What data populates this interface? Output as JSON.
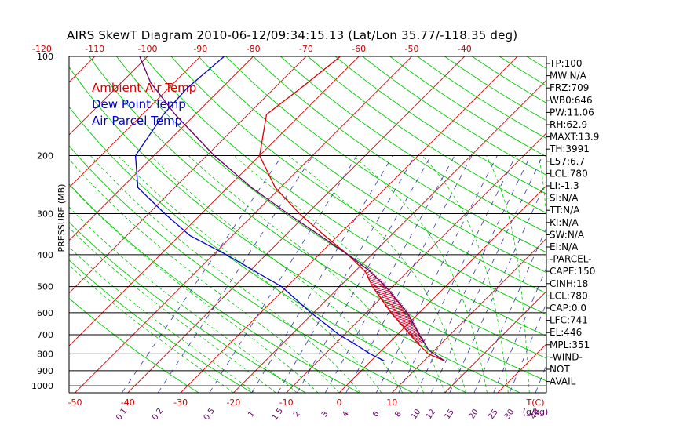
{
  "title": "AIRS SkewT Diagram 2010-06-12/09:34:15.13 (Lat/Lon 35.77/-118.35 deg)",
  "colors": {
    "temp": "#dd0000",
    "dewpoint": "#0000cc",
    "parcel": "#660066",
    "isotherm": "#dd0000",
    "dry_adiabat": "#00cc00",
    "moist_adiabat": "#00cc00",
    "mixing_ratio": "#3333aa",
    "bottom_labels": "#cc0000",
    "mixing_labels": "#660066"
  },
  "legend": [
    {
      "label": "Ambient Air Temp",
      "color": "#dd0000"
    },
    {
      "label": "Dew Point Temp",
      "color": "#0000cc"
    },
    {
      "label": "Air Parcel Temp",
      "color": "#0000cc"
    }
  ],
  "ylabel": "PRESSURE (MB)",
  "indices": [
    "TP:100",
    "MW:N/A",
    "FRZ:709",
    "WB0:646",
    "PW:11.06",
    "RH:62.9",
    "MAXT:13.9",
    "TH:3991",
    "L57:6.7",
    "LCL:780",
    "LI:-1.3",
    "SI:N/A",
    "TT:N/A",
    "KI:N/A",
    "SW:N/A",
    "EI:N/A",
    "-PARCEL-",
    "CAPE:150",
    "CINH:18",
    "LCL:780",
    "CAP:0.0",
    "LFC:741",
    "EL:446",
    "MPL:351",
    "-WIND-",
    "NOT",
    "AVAIL"
  ],
  "chart_data": {
    "type": "line",
    "title": "AIRS SkewT Diagram 2010-06-12/09:34:15.13 (Lat/Lon 35.77/-118.35 deg)",
    "ylabel": "PRESSURE (MB)",
    "xlabel": "T(C)",
    "ylim": [
      1050,
      100
    ],
    "y_scale": "log",
    "pressure_ticks": [
      100,
      200,
      300,
      400,
      500,
      600,
      700,
      800,
      900,
      1000
    ],
    "top_temp_ticks": [
      -120,
      -110,
      -100,
      -90,
      -80,
      -70,
      -60,
      -50,
      -40
    ],
    "bottom_temp_ticks": [
      -50,
      -40,
      -30,
      -20,
      -10,
      0,
      10
    ],
    "mixing_ratio_ticks": [
      "0.1",
      "0.2",
      "0.5",
      "1",
      "1.5",
      "2",
      "3",
      "4",
      "6",
      "8",
      "10",
      "12",
      "15",
      "20",
      "25",
      "30",
      "40"
    ],
    "mixing_unit_label": "(g/kg)",
    "temp_unit_label": "T(C)",
    "grid": true,
    "legend_position": "top-left",
    "series": [
      {
        "name": "Ambient Air Temp",
        "points": [
          [
            840,
            13.9
          ],
          [
            800,
            9.5
          ],
          [
            750,
            6.0
          ],
          [
            700,
            2.5
          ],
          [
            600,
            -5.3
          ],
          [
            500,
            -13.8
          ],
          [
            450,
            -18.0
          ],
          [
            400,
            -24.5
          ],
          [
            350,
            -32.5
          ],
          [
            300,
            -41.5
          ],
          [
            250,
            -51.0
          ],
          [
            200,
            -60.0
          ],
          [
            150,
            -66.5
          ],
          [
            125,
            -65.0
          ],
          [
            100,
            -63.5
          ]
        ]
      },
      {
        "name": "Dew Point Temp",
        "points": [
          [
            840,
            2.5
          ],
          [
            800,
            -1.5
          ],
          [
            750,
            -6.0
          ],
          [
            700,
            -11.0
          ],
          [
            600,
            -20.5
          ],
          [
            500,
            -31.0
          ],
          [
            400,
            -47.5
          ],
          [
            350,
            -58.0
          ],
          [
            300,
            -67.0
          ],
          [
            250,
            -77.0
          ],
          [
            200,
            -83.5
          ],
          [
            150,
            -86.0
          ],
          [
            125,
            -86.5
          ],
          [
            100,
            -85.5
          ]
        ]
      },
      {
        "name": "Air Parcel Temp",
        "points": [
          [
            840,
            13.9
          ],
          [
            780,
            8.9
          ],
          [
            700,
            4.2
          ],
          [
            600,
            -2.3
          ],
          [
            500,
            -11.3
          ],
          [
            446,
            -17.6
          ],
          [
            400,
            -24.5
          ],
          [
            300,
            -43.7
          ],
          [
            250,
            -55.5
          ],
          [
            200,
            -68.6
          ],
          [
            150,
            -83.8
          ],
          [
            120,
            -94.5
          ],
          [
            100,
            -101.5
          ]
        ]
      }
    ],
    "cape_shading": {
      "from_pressure": 741,
      "to_pressure": 446
    }
  }
}
